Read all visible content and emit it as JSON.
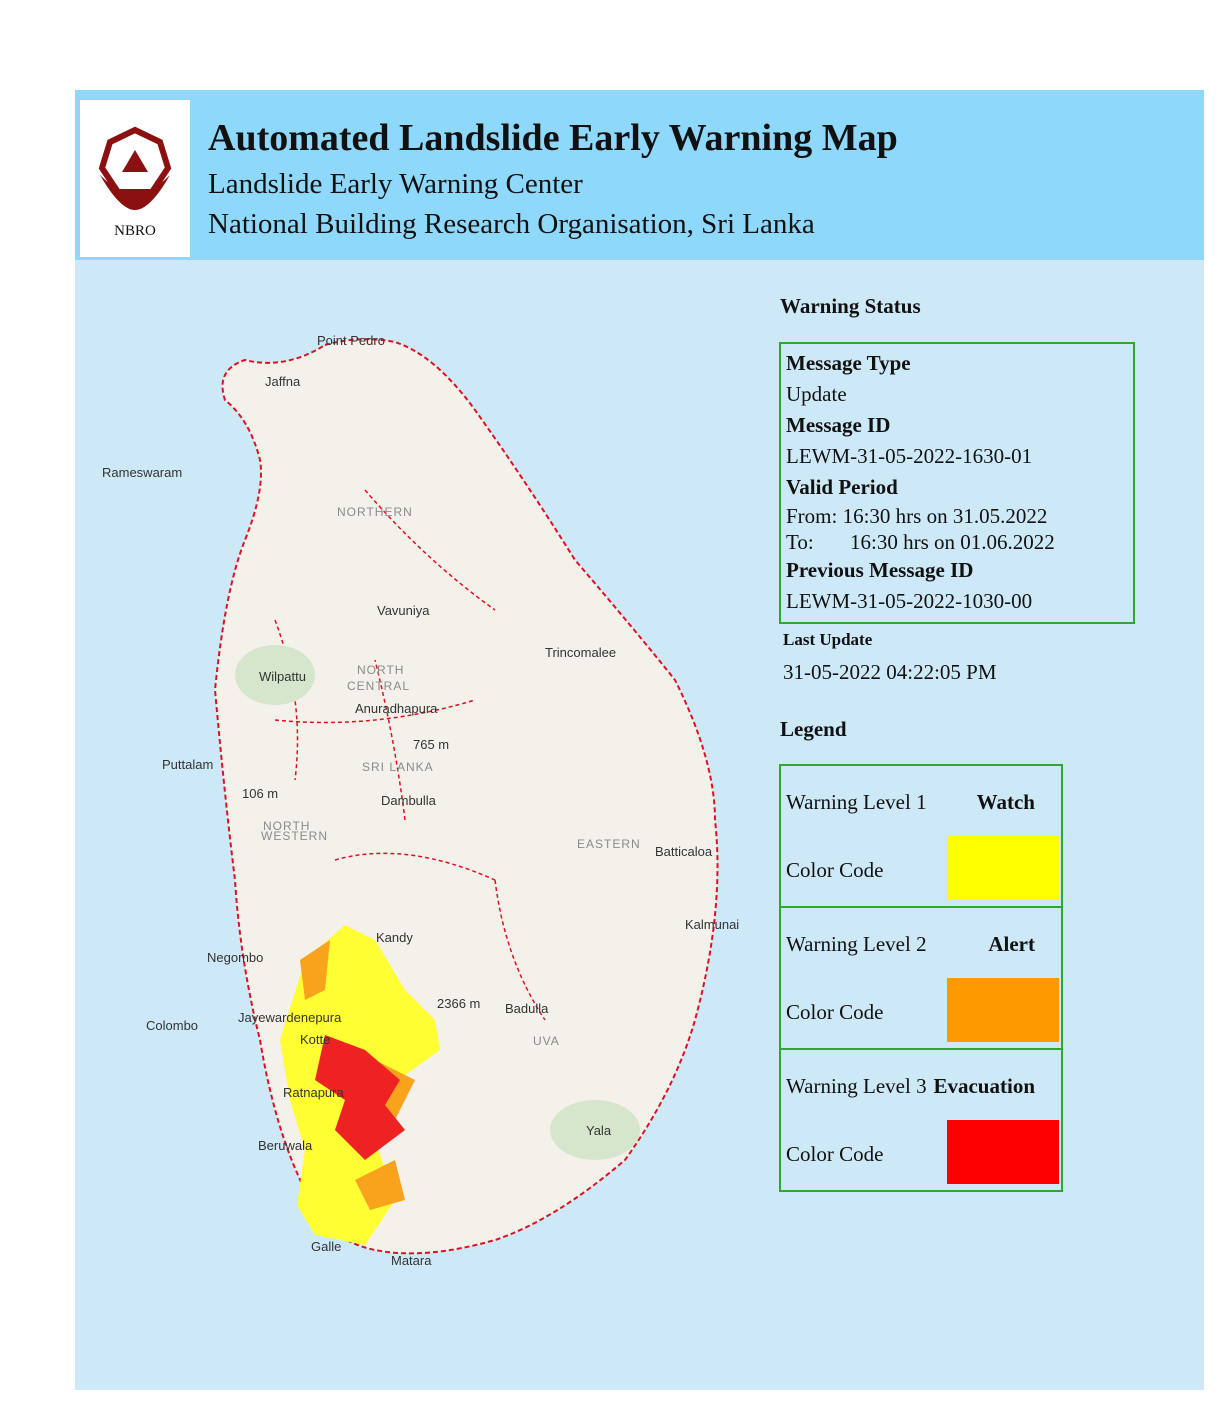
{
  "header": {
    "logo_text": "NBRO",
    "title": "Automated Landslide Early Warning Map",
    "subtitle": "Landslide Early Warning Center",
    "organisation": "National Building Research Organisation, Sri Lanka"
  },
  "warning_status": {
    "heading": "Warning Status",
    "message_type_label": "Message Type",
    "message_type": "Update",
    "message_id_label": "Message ID",
    "message_id": "LEWM-31-05-2022-1630-01",
    "valid_period_label": "Valid Period",
    "from_label": "From:",
    "from": "16:30 hrs on 31.05.2022",
    "to_label": "To:",
    "to": "16:30 hrs on 01.06.2022",
    "previous_id_label": "Previous Message ID",
    "previous_id": "LEWM-31-05-2022-1030-00"
  },
  "last_update": {
    "label": "Last Update",
    "value": "31-05-2022 04:22:05 PM"
  },
  "legend": {
    "heading": "Legend",
    "levels": [
      {
        "level": "Warning Level 1",
        "name": "Watch",
        "color_label": "Color Code",
        "color": "#ffff00"
      },
      {
        "level": "Warning Level 2",
        "name": "Alert",
        "color_label": "Color Code",
        "color": "#ff9900"
      },
      {
        "level": "Warning Level 3",
        "name": "Evacuation",
        "color_label": "Color Code",
        "color": "#ff0000"
      }
    ]
  },
  "map": {
    "labels": [
      "Point Pedro",
      "Jaffna",
      "Rameswaram",
      "NORTHERN",
      "Vavuniya",
      "Trincomalee",
      "Wilpattu",
      "NORTH",
      "CENTRAL",
      "Anuradhapura",
      "765 m",
      "SRI LANKA",
      "Puttalam",
      "106 m",
      "Dambulla",
      "NORTH",
      "WESTERN",
      "EASTERN",
      "Batticaloa",
      "Kalmunai",
      "Kandy",
      "Negombo",
      "Colombo",
      "Jayewardenepura",
      "Kotte",
      "2366 m",
      "Badulla",
      "UVA",
      "Ratnapura",
      "Beruwala",
      "Yala",
      "Galle",
      "Matara"
    ]
  }
}
